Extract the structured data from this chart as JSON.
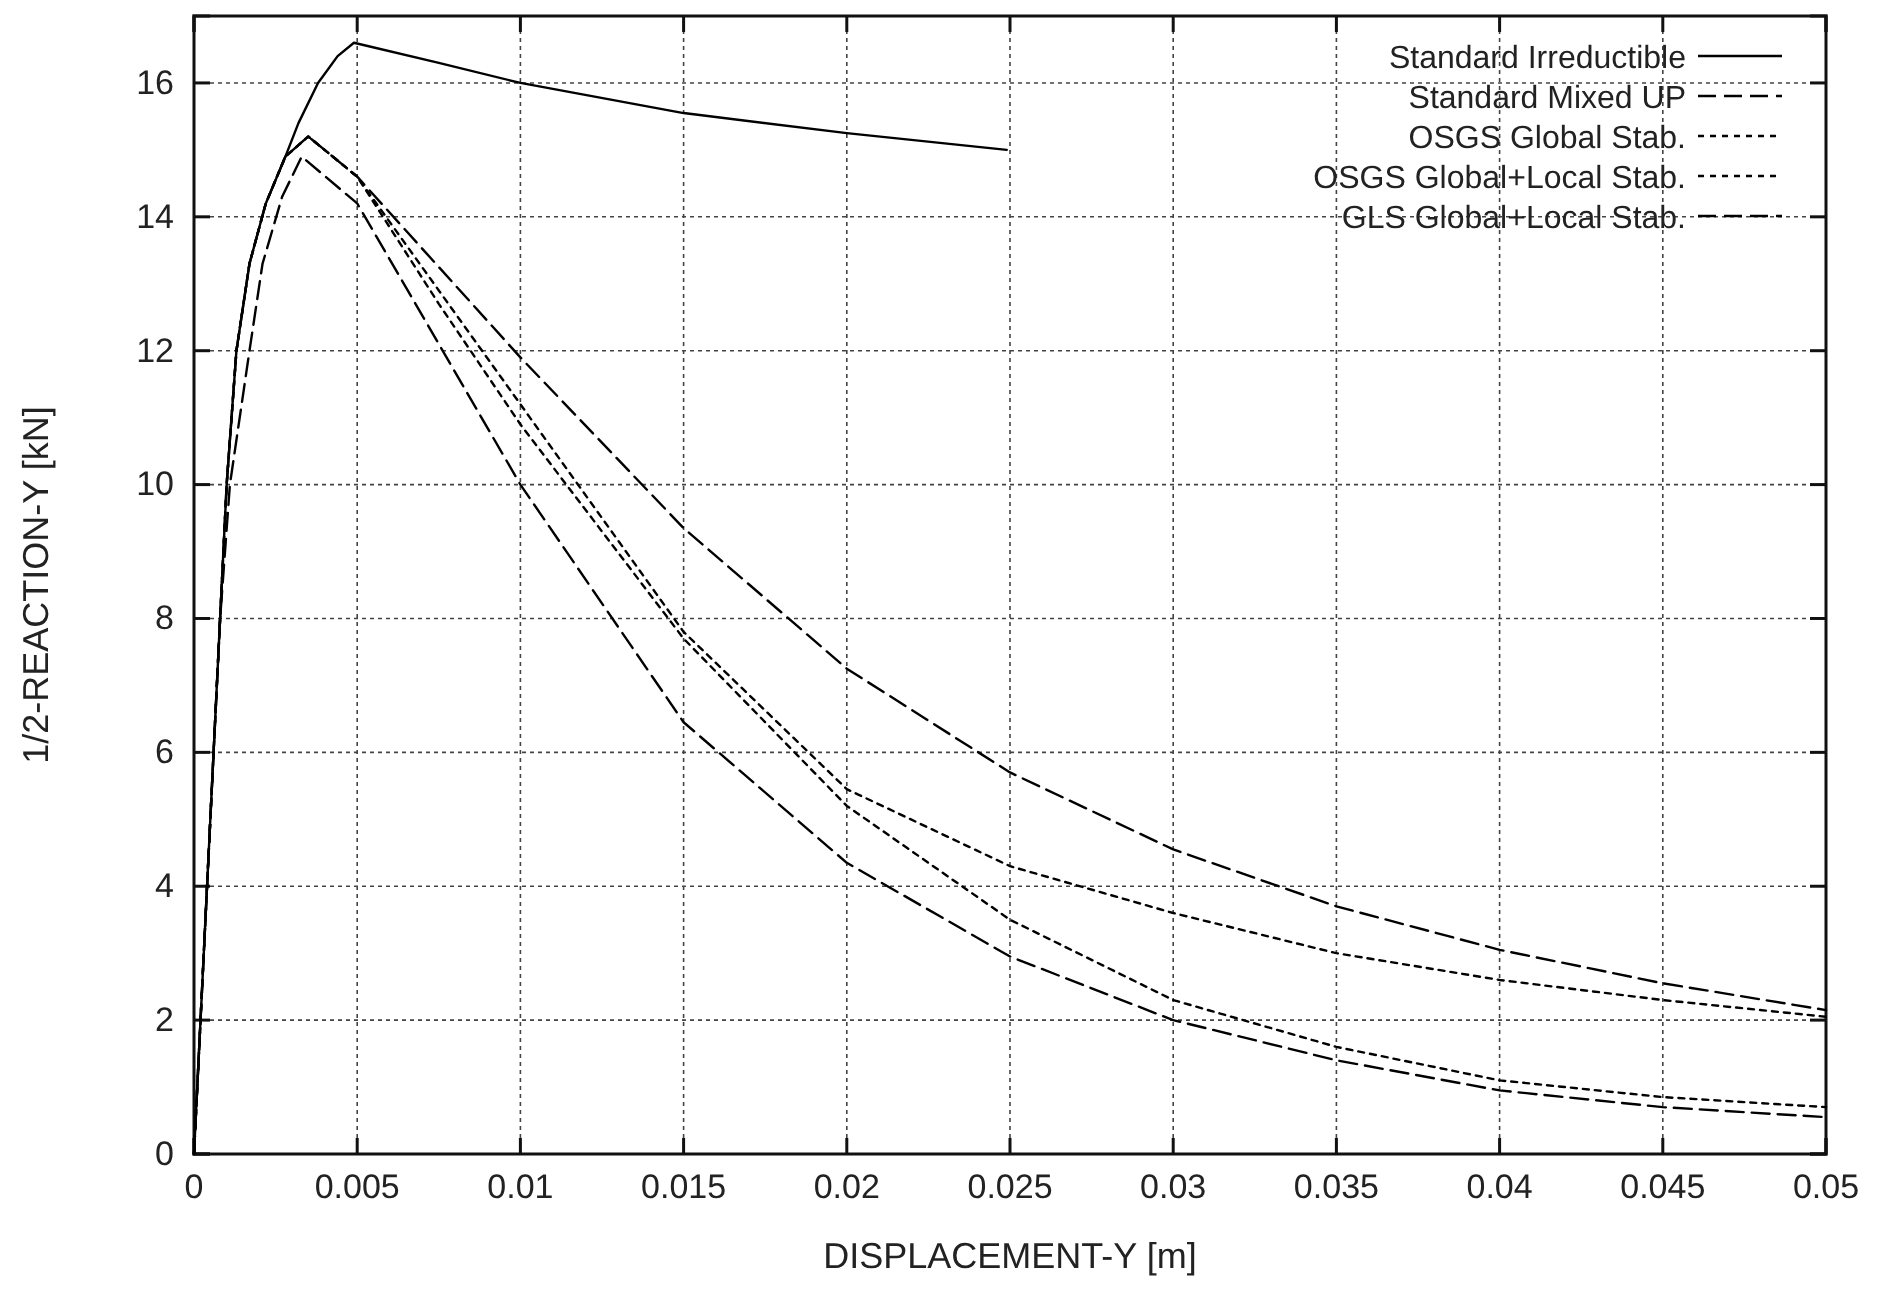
{
  "chart_data": {
    "type": "line",
    "xlabel": "DISPLACEMENT-Y [m]",
    "ylabel": "1/2-REACTION-Y [kN]",
    "xlim": [
      0,
      0.05
    ],
    "ylim": [
      0,
      17
    ],
    "xticks": [
      0,
      0.005,
      0.01,
      0.015,
      0.02,
      0.025,
      0.03,
      0.035,
      0.04,
      0.045,
      0.05
    ],
    "yticks": [
      0,
      2,
      4,
      6,
      8,
      10,
      12,
      14,
      16
    ],
    "grid": true,
    "legend": "top right",
    "marker": "none",
    "series": [
      {
        "name": "Standard Irreductible",
        "color": "#000000",
        "line_style": "solid",
        "x": [
          0,
          0.0002,
          0.0004,
          0.0006,
          0.0008,
          0.001,
          0.0013,
          0.0017,
          0.0022,
          0.0028,
          0.0032,
          0.0038,
          0.0044,
          0.0049,
          0.0075,
          0.01,
          0.015,
          0.02,
          0.0249
        ],
        "values": [
          0,
          2,
          4,
          6,
          8,
          10,
          12,
          13.3,
          14.2,
          14.9,
          15.4,
          16,
          16.4,
          16.6,
          16.3,
          16,
          15.55,
          15.25,
          15
        ]
      },
      {
        "name": "Standard Mixed UP",
        "color": "#000000",
        "line_style": "dashed",
        "x": [
          0,
          0.0002,
          0.0004,
          0.0006,
          0.0008,
          0.001,
          0.0013,
          0.0017,
          0.0022,
          0.0028,
          0.0035,
          0.005,
          0.0075,
          0.01,
          0.015,
          0.02,
          0.025,
          0.03,
          0.035,
          0.04,
          0.045,
          0.05
        ],
        "values": [
          0,
          2,
          4,
          6,
          8,
          10,
          12,
          13.3,
          14.2,
          14.9,
          15.2,
          14.6,
          13.25,
          11.9,
          9.35,
          7.25,
          5.7,
          4.55,
          3.7,
          3.05,
          2.55,
          2.15
        ]
      },
      {
        "name": "OSGS Global Stab.",
        "color": "#000000",
        "line_style": "dotted",
        "x": [
          0,
          0.0002,
          0.0004,
          0.0006,
          0.0008,
          0.001,
          0.0013,
          0.0017,
          0.0022,
          0.0028,
          0.0035,
          0.005,
          0.0075,
          0.01,
          0.015,
          0.02,
          0.025,
          0.03,
          0.035,
          0.04,
          0.045,
          0.05
        ],
        "values": [
          0,
          2,
          4,
          6,
          8,
          10,
          12,
          13.3,
          14.2,
          14.9,
          15.2,
          14.6,
          12.9,
          11.2,
          7.8,
          5.45,
          4.3,
          3.6,
          3,
          2.6,
          2.3,
          2.05
        ]
      },
      {
        "name": "OSGS Global+Local Stab.",
        "color": "#000000",
        "line_style": "dotted",
        "x": [
          0,
          0.0002,
          0.0004,
          0.0006,
          0.0008,
          0.001,
          0.0013,
          0.0017,
          0.0022,
          0.0028,
          0.0035,
          0.005,
          0.0075,
          0.01,
          0.015,
          0.02,
          0.025,
          0.03,
          0.035,
          0.04,
          0.045,
          0.05
        ],
        "values": [
          0,
          2,
          4,
          6,
          8,
          10,
          12,
          13.3,
          14.2,
          14.9,
          15.2,
          14.6,
          12.7,
          10.9,
          7.7,
          5.2,
          3.5,
          2.3,
          1.6,
          1.1,
          0.85,
          0.7
        ]
      },
      {
        "name": "GLS Global+Local Stab.",
        "color": "#000000",
        "line_style": "dashed",
        "x": [
          0,
          0.0002,
          0.0004,
          0.0006,
          0.0008,
          0.0011,
          0.0017,
          0.0021,
          0.0027,
          0.0033,
          0.005,
          0.0075,
          0.01,
          0.015,
          0.02,
          0.025,
          0.03,
          0.035,
          0.04,
          0.045,
          0.05
        ],
        "values": [
          0,
          2,
          4,
          6,
          8,
          10,
          12,
          13.3,
          14.3,
          14.9,
          14.2,
          12.1,
          10,
          6.45,
          4.35,
          2.95,
          2,
          1.4,
          0.95,
          0.7,
          0.55
        ]
      }
    ]
  }
}
